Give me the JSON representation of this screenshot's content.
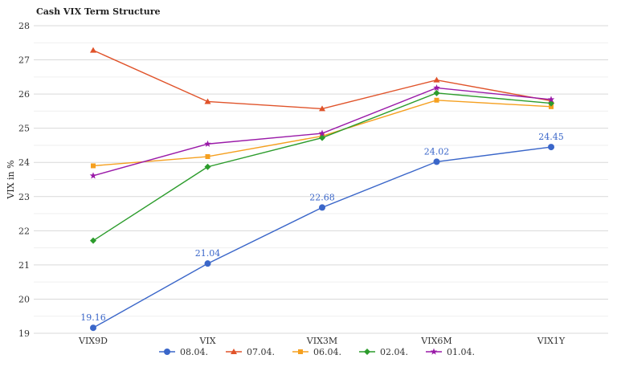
{
  "chart_data": {
    "type": "line",
    "title": "Cash VIX Term Structure",
    "xlabel": "",
    "ylabel": "VIX in %",
    "categories": [
      "VIX9D",
      "VIX",
      "VIX3M",
      "VIX6M",
      "VIX1Y"
    ],
    "ylim": [
      19,
      28
    ],
    "yticks": [
      19,
      20,
      21,
      22,
      23,
      24,
      25,
      26,
      27,
      28
    ],
    "grid": true,
    "legend_position": "bottom-center",
    "series": [
      {
        "name": "08.04.",
        "color": "#3a66c9",
        "marker": "circle",
        "values": [
          19.16,
          21.04,
          22.68,
          24.02,
          24.45
        ],
        "labels": [
          "19.16",
          "21.04",
          "22.68",
          "24.02",
          "24.45"
        ]
      },
      {
        "name": "07.04.",
        "color": "#e0532a",
        "marker": "triangle",
        "values": [
          27.28,
          25.78,
          25.57,
          26.41,
          25.8
        ]
      },
      {
        "name": "06.04.",
        "color": "#f5a020",
        "marker": "square",
        "values": [
          23.9,
          24.17,
          24.77,
          25.82,
          25.63
        ]
      },
      {
        "name": "02.04.",
        "color": "#2c9c2c",
        "marker": "diamond",
        "values": [
          21.71,
          23.87,
          24.72,
          26.03,
          25.73
        ]
      },
      {
        "name": "01.04.",
        "color": "#9a1aa8",
        "marker": "star",
        "values": [
          23.61,
          24.54,
          24.85,
          26.18,
          25.84
        ]
      }
    ]
  }
}
